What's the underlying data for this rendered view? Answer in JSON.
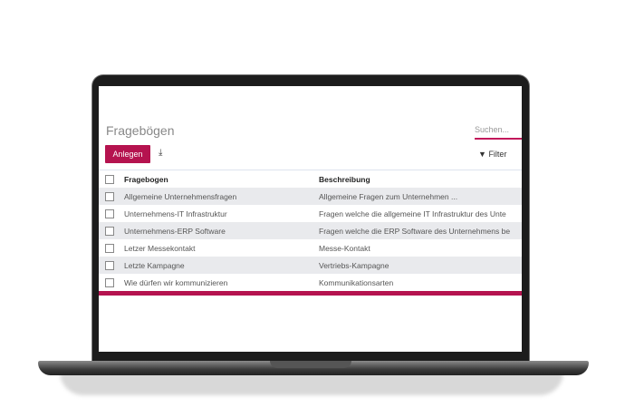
{
  "page": {
    "title": "Fragebögen",
    "search_placeholder": "Suchen...",
    "create_label": "Anlegen",
    "download_icon": "download-icon",
    "filter_label": "Filter",
    "filter_icon": "filter-icon",
    "accent": "#b5134f"
  },
  "table": {
    "headers": [
      "Fragebogen",
      "Beschreibung"
    ],
    "rows": [
      [
        "Allgemeine Unternehmensfragen",
        "Allgemeine Fragen zum Unternehmen ..."
      ],
      [
        "Unternehmens-IT Infrastruktur",
        "Fragen welche die allgemeine IT Infrastruktur des Unte"
      ],
      [
        "Unternehmens-ERP Software",
        "Fragen welche die ERP Software des Unternehmens be"
      ],
      [
        "Letzer Messekontakt",
        "Messe-Kontakt"
      ],
      [
        "Letzte Kampagne",
        "Vertriebs-Kampagne"
      ],
      [
        "Wie dürfen wir kommunizieren",
        "Kommunikationsarten"
      ]
    ]
  }
}
